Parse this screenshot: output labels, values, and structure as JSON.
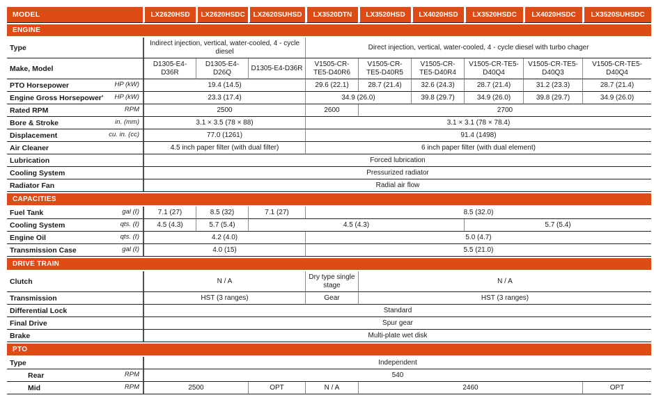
{
  "theme": {
    "accent": "#DE4B15",
    "header_text": "#FFFFFF"
  },
  "columns": {
    "label_header": "MODEL",
    "models": [
      "LX2620HSD",
      "LX2620HSDC",
      "LX2620SUHSD",
      "LX3520DTN",
      "LX3520HSD",
      "LX4020HSD",
      "LX3520HSDC",
      "LX4020HSDC",
      "LX3520SUHSDC"
    ]
  },
  "sections": [
    {
      "title": "ENGINE",
      "rows": [
        {
          "label": "Type",
          "unit": "",
          "cells": [
            {
              "text": "Indirect injection, vertical, water-cooled, 4 - cycle diesel",
              "span": 3
            },
            {
              "text": "Direct injection, vertical, water-cooled, 4 - cycle diesel with turbo chager",
              "span": 6
            }
          ]
        },
        {
          "label": "Make, Model",
          "unit": "",
          "cells": [
            {
              "text": "D1305-E4-D36R",
              "span": 1
            },
            {
              "text": "D1305-E4-D26Q",
              "span": 1
            },
            {
              "text": "D1305-E4-D36R",
              "span": 1
            },
            {
              "text": "V1505-CR-TE5-D40R6",
              "span": 1
            },
            {
              "text": "V1505-CR-TE5-D40R5",
              "span": 1
            },
            {
              "text": "V1505-CR-TE5-D40R4",
              "span": 1
            },
            {
              "text": "V1505-CR-TE5-D40Q4",
              "span": 1
            },
            {
              "text": "V1505-CR-TE5-D40Q3",
              "span": 1
            },
            {
              "text": "V1505-CR-TE5-D40Q4",
              "span": 1
            }
          ]
        },
        {
          "label": "PTO Horsepower",
          "unit": "HP (kW)",
          "cells": [
            {
              "text": "19.4 (14.5)",
              "span": 3
            },
            {
              "text": "29.6 (22.1)",
              "span": 1
            },
            {
              "text": "28.7 (21.4)",
              "span": 1
            },
            {
              "text": "32.6 (24.3)",
              "span": 1
            },
            {
              "text": "28.7 (21.4)",
              "span": 1
            },
            {
              "text": "31.2 (23.3)",
              "span": 1
            },
            {
              "text": "28.7 (21.4)",
              "span": 1
            }
          ]
        },
        {
          "label": "Engine Gross Horsepower'",
          "unit": "HP (kW)",
          "cells": [
            {
              "text": "23.3 (17.4)",
              "span": 3
            },
            {
              "text": "34.9 (26.0)",
              "span": 2
            },
            {
              "text": "39.8 (29.7)",
              "span": 1
            },
            {
              "text": "34.9 (26.0)",
              "span": 1
            },
            {
              "text": "39.8 (29.7)",
              "span": 1
            },
            {
              "text": "34.9 (26.0)",
              "span": 1
            }
          ]
        },
        {
          "label": "Rated RPM",
          "unit": "RPM",
          "cells": [
            {
              "text": "2500",
              "span": 3
            },
            {
              "text": "2600",
              "span": 1
            },
            {
              "text": "2700",
              "span": 5
            }
          ]
        },
        {
          "label": "Bore & Stroke",
          "unit": "in. (mm)",
          "cells": [
            {
              "text": "3.1 × 3.5 (78 × 88)",
              "span": 3
            },
            {
              "text": "3.1 × 3.1 (78 × 78.4)",
              "span": 6
            }
          ]
        },
        {
          "label": "Displacement",
          "unit": "cu. in. (cc)",
          "cells": [
            {
              "text": "77.0 (1261)",
              "span": 3
            },
            {
              "text": "91.4 (1498)",
              "span": 6
            }
          ]
        },
        {
          "label": "Air Cleaner",
          "unit": "",
          "cells": [
            {
              "text": "4.5 inch paper filter (with dual filter)",
              "span": 3
            },
            {
              "text": "6 inch paper filter (with dual element)",
              "span": 6
            }
          ]
        },
        {
          "label": "Lubrication",
          "unit": "",
          "cells": [
            {
              "text": "Forced lubrication",
              "span": 9
            }
          ]
        },
        {
          "label": "Cooling System",
          "unit": "",
          "cells": [
            {
              "text": "Pressurized radiator",
              "span": 9
            }
          ]
        },
        {
          "label": "Radiator Fan",
          "unit": "",
          "cells": [
            {
              "text": "Radial air flow",
              "span": 9
            }
          ]
        }
      ]
    },
    {
      "title": "CAPACITIES",
      "rows": [
        {
          "label": "Fuel Tank",
          "unit": "gal (ℓ)",
          "cells": [
            {
              "text": "7.1 (27)",
              "span": 1
            },
            {
              "text": "8.5 (32)",
              "span": 1
            },
            {
              "text": "7.1 (27)",
              "span": 1
            },
            {
              "text": "8.5 (32.0)",
              "span": 6
            }
          ]
        },
        {
          "label": "Cooling System",
          "unit": "qts. (ℓ)",
          "cells": [
            {
              "text": "4.5 (4.3)",
              "span": 1
            },
            {
              "text": "5.7 (5.4)",
              "span": 1
            },
            {
              "text": "4.5 (4.3)",
              "span": 4
            },
            {
              "text": "5.7 (5.4)",
              "span": 3
            }
          ]
        },
        {
          "label": "Engine Oil",
          "unit": "qts. (ℓ)",
          "cells": [
            {
              "text": "4.2 (4.0)",
              "span": 3
            },
            {
              "text": "5.0 (4.7)",
              "span": 6
            }
          ]
        },
        {
          "label": "Transmission Case",
          "unit": "gal (ℓ)",
          "cells": [
            {
              "text": "4.0 (15)",
              "span": 3
            },
            {
              "text": "5.5 (21.0)",
              "span": 6
            }
          ]
        }
      ]
    },
    {
      "title": "DRIVE TRAIN",
      "rows": [
        {
          "label": "Clutch",
          "unit": "",
          "cells": [
            {
              "text": "N / A",
              "span": 3
            },
            {
              "text": "Dry type single stage",
              "span": 1
            },
            {
              "text": "N / A",
              "span": 5
            }
          ]
        },
        {
          "label": "Transmission",
          "unit": "",
          "cells": [
            {
              "text": "HST (3 ranges)",
              "span": 3
            },
            {
              "text": "Gear",
              "span": 1
            },
            {
              "text": "HST (3 ranges)",
              "span": 5
            }
          ]
        },
        {
          "label": "Differential Lock",
          "unit": "",
          "cells": [
            {
              "text": "Standard",
              "span": 9
            }
          ]
        },
        {
          "label": "Final Drive",
          "unit": "",
          "cells": [
            {
              "text": "Spur gear",
              "span": 9
            }
          ]
        },
        {
          "label": "Brake",
          "unit": "",
          "cells": [
            {
              "text": "Multi-plate wet disk",
              "span": 9
            }
          ]
        }
      ]
    },
    {
      "title": "PTO",
      "rows": [
        {
          "label": "Type",
          "unit": "",
          "cells": [
            {
              "text": "Independent",
              "span": 9
            }
          ]
        },
        {
          "label": "Rear",
          "unit": "RPM",
          "indent": true,
          "cells": [
            {
              "text": "540",
              "span": 9
            }
          ]
        },
        {
          "label": "Mid",
          "unit": "RPM",
          "indent": true,
          "cells": [
            {
              "text": "2500",
              "span": 2
            },
            {
              "text": "OPT",
              "span": 1
            },
            {
              "text": "N / A",
              "span": 1
            },
            {
              "text": "2460",
              "span": 4
            },
            {
              "text": "OPT",
              "span": 1
            }
          ]
        }
      ]
    }
  ]
}
